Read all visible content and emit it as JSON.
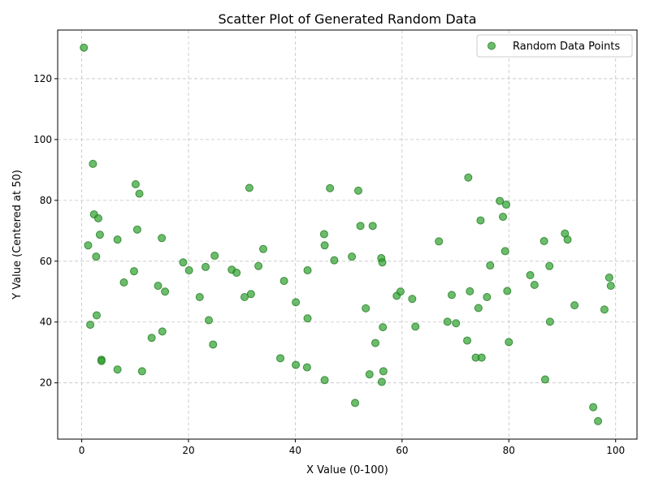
{
  "chart_data": {
    "type": "scatter",
    "title": "Scatter Plot of Generated Random Data",
    "xlabel": "X Value (0-100)",
    "ylabel": "Y Value (Centered at 50)",
    "xlim": [
      -4.5,
      104
    ],
    "ylim": [
      1.5,
      136
    ],
    "xticks": [
      0,
      20,
      40,
      60,
      80,
      100
    ],
    "yticks": [
      20,
      40,
      60,
      80,
      100,
      120
    ],
    "xtick_labels": [
      "0",
      "20",
      "40",
      "60",
      "80",
      "100"
    ],
    "ytick_labels": [
      "20",
      "40",
      "60",
      "80",
      "100",
      "120"
    ],
    "grid": true,
    "legend_position": "top-right",
    "colors": {
      "point_fill": "#2ca02c",
      "point_edge": "#1f7a1f"
    },
    "series": [
      {
        "name": "Random Data Points",
        "points": [
          [
            0.4,
            130.2
          ],
          [
            1.2,
            65.2
          ],
          [
            1.6,
            39.1
          ],
          [
            2.1,
            92.0
          ],
          [
            2.3,
            75.4
          ],
          [
            2.7,
            61.5
          ],
          [
            2.8,
            42.2
          ],
          [
            3.1,
            74.1
          ],
          [
            3.4,
            68.7
          ],
          [
            3.7,
            27.6
          ],
          [
            3.7,
            27.2
          ],
          [
            6.7,
            67.1
          ],
          [
            6.7,
            24.4
          ],
          [
            7.9,
            53.0
          ],
          [
            9.8,
            56.7
          ],
          [
            10.1,
            85.3
          ],
          [
            10.4,
            70.4
          ],
          [
            10.8,
            82.2
          ],
          [
            11.3,
            23.8
          ],
          [
            13.1,
            34.8
          ],
          [
            14.3,
            51.9
          ],
          [
            15.0,
            67.6
          ],
          [
            15.1,
            36.9
          ],
          [
            15.6,
            50.0
          ],
          [
            19.0,
            59.6
          ],
          [
            20.1,
            57.0
          ],
          [
            22.1,
            48.2
          ],
          [
            23.2,
            58.1
          ],
          [
            23.8,
            40.6
          ],
          [
            24.6,
            32.6
          ],
          [
            24.9,
            61.8
          ],
          [
            28.1,
            57.2
          ],
          [
            29.0,
            56.2
          ],
          [
            30.5,
            48.2
          ],
          [
            31.4,
            84.1
          ],
          [
            31.7,
            49.2
          ],
          [
            33.1,
            58.4
          ],
          [
            34.0,
            64.0
          ],
          [
            37.2,
            28.1
          ],
          [
            37.9,
            53.5
          ],
          [
            40.1,
            25.9
          ],
          [
            40.1,
            46.5
          ],
          [
            42.2,
            25.1
          ],
          [
            42.3,
            41.2
          ],
          [
            42.3,
            57.0
          ],
          [
            45.4,
            68.9
          ],
          [
            45.5,
            65.2
          ],
          [
            45.5,
            20.9
          ],
          [
            46.5,
            84.0
          ],
          [
            47.3,
            60.3
          ],
          [
            50.6,
            61.5
          ],
          [
            51.2,
            13.4
          ],
          [
            51.8,
            83.2
          ],
          [
            52.2,
            71.6
          ],
          [
            53.2,
            44.5
          ],
          [
            53.9,
            22.8
          ],
          [
            54.5,
            71.6
          ],
          [
            55.0,
            33.1
          ],
          [
            56.1,
            61.0
          ],
          [
            56.2,
            20.3
          ],
          [
            56.3,
            59.6
          ],
          [
            56.4,
            38.3
          ],
          [
            56.5,
            23.8
          ],
          [
            59.0,
            48.6
          ],
          [
            59.7,
            50.0
          ],
          [
            61.9,
            47.6
          ],
          [
            62.5,
            38.5
          ],
          [
            66.9,
            66.5
          ],
          [
            68.5,
            40.1
          ],
          [
            69.3,
            48.9
          ],
          [
            70.1,
            39.6
          ],
          [
            72.2,
            33.9
          ],
          [
            72.4,
            87.5
          ],
          [
            72.7,
            50.1
          ],
          [
            73.8,
            28.3
          ],
          [
            74.3,
            44.6
          ],
          [
            74.7,
            73.4
          ],
          [
            74.9,
            28.3
          ],
          [
            75.9,
            48.2
          ],
          [
            76.5,
            58.6
          ],
          [
            78.3,
            79.8
          ],
          [
            78.9,
            74.6
          ],
          [
            79.3,
            63.3
          ],
          [
            79.5,
            78.6
          ],
          [
            79.7,
            50.2
          ],
          [
            80.0,
            33.4
          ],
          [
            84.0,
            55.4
          ],
          [
            84.8,
            52.2
          ],
          [
            86.6,
            66.6
          ],
          [
            86.8,
            21.1
          ],
          [
            87.6,
            58.4
          ],
          [
            87.7,
            40.1
          ],
          [
            90.5,
            69.1
          ],
          [
            91.0,
            67.1
          ],
          [
            92.3,
            45.5
          ],
          [
            95.8,
            12.0
          ],
          [
            96.7,
            7.4
          ],
          [
            97.9,
            44.1
          ],
          [
            98.8,
            54.6
          ],
          [
            99.1,
            51.9
          ]
        ]
      }
    ]
  }
}
